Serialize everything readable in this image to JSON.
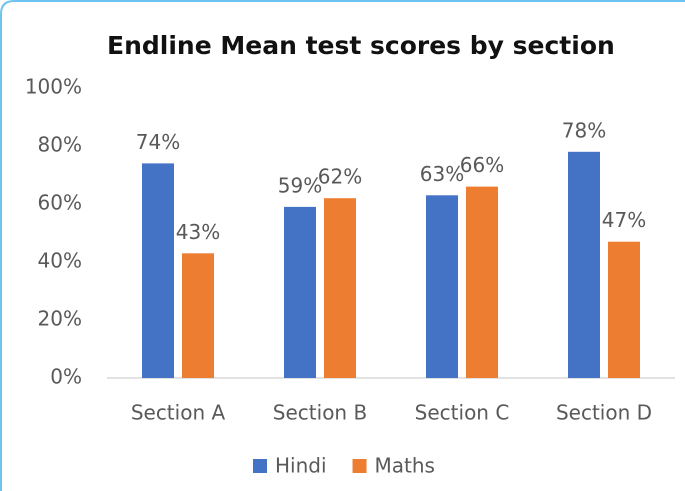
{
  "chart_data": {
    "type": "bar",
    "title": "Endline Mean test scores by section",
    "categories": [
      "Section A",
      "Section B",
      "Section C",
      "Section D"
    ],
    "series": [
      {
        "name": "Hindi",
        "color": "#4472c4",
        "values": [
          74,
          59,
          63,
          78
        ],
        "value_labels": [
          "74%",
          "59%",
          "63%",
          "78%"
        ]
      },
      {
        "name": "Maths",
        "color": "#ed7d31",
        "values": [
          43,
          62,
          66,
          47
        ],
        "value_labels": [
          "43%",
          "62%",
          "66%",
          "47%"
        ]
      }
    ],
    "ylim": [
      0,
      100
    ],
    "yticks": [
      {
        "value": 0,
        "label": "0%"
      },
      {
        "value": 20,
        "label": "20%"
      },
      {
        "value": 40,
        "label": "40%"
      },
      {
        "value": 60,
        "label": "60%"
      },
      {
        "value": 80,
        "label": "80%"
      },
      {
        "value": 100,
        "label": "100%"
      }
    ],
    "grid": false,
    "legend": "bottom"
  }
}
